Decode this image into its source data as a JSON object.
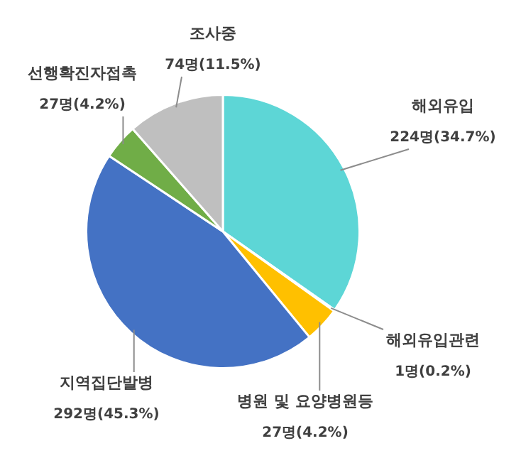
{
  "chart_data": {
    "type": "pie",
    "categories": [
      "해외유입",
      "해외유입관련",
      "병원 및 요양병원등",
      "지역집단발병",
      "선행확진자접촉",
      "조사중"
    ],
    "values": [
      224,
      1,
      27,
      292,
      27,
      74
    ],
    "value_labels": [
      "224명(34.7%)",
      "1명(0.2%)",
      "27명(4.2%)",
      "292명(45.3%)",
      "27명(4.2%)",
      "74명(11.5%)"
    ],
    "colors": [
      "#5dd6d6",
      "#ed7d31",
      "#ffc000",
      "#4472c4",
      "#70ad47",
      "#bfbfbf"
    ],
    "legend": false
  }
}
